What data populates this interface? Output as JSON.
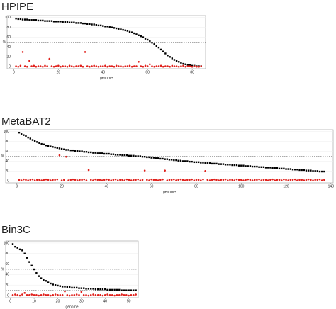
{
  "chart_data": [
    {
      "type": "scatter",
      "title": "HPIPE",
      "x_label": "genome",
      "y_label": "%",
      "xlim": [
        -3,
        86
      ],
      "ylim": [
        -4,
        104
      ],
      "xticks": [
        0,
        20,
        40,
        60,
        80
      ],
      "yticks": [
        0,
        20,
        40,
        60,
        80,
        100
      ],
      "reference_lines": [
        50,
        10
      ],
      "x": [
        1,
        2,
        3,
        4,
        5,
        6,
        7,
        8,
        9,
        10,
        11,
        12,
        13,
        14,
        15,
        16,
        17,
        18,
        19,
        20,
        21,
        22,
        23,
        24,
        25,
        26,
        27,
        28,
        29,
        30,
        31,
        32,
        33,
        34,
        35,
        36,
        37,
        38,
        39,
        40,
        41,
        42,
        43,
        44,
        45,
        46,
        47,
        48,
        49,
        50,
        51,
        52,
        53,
        54,
        55,
        56,
        57,
        58,
        59,
        60,
        61,
        62,
        63,
        64,
        65,
        66,
        67,
        68,
        69,
        70,
        71,
        72,
        73,
        74,
        75,
        76,
        77,
        78,
        79,
        80,
        81,
        82,
        83,
        84
      ],
      "series": [
        {
          "color": "#000000",
          "values": [
            98,
            97,
            97,
            96,
            96,
            96,
            95,
            95,
            95,
            95,
            94,
            94,
            94,
            93,
            93,
            93,
            93,
            92,
            92,
            92,
            92,
            91,
            91,
            91,
            90,
            90,
            90,
            89,
            89,
            89,
            88,
            88,
            87,
            87,
            86,
            86,
            85,
            84,
            84,
            83,
            82,
            82,
            81,
            80,
            79,
            78,
            77,
            76,
            75,
            74,
            73,
            71,
            70,
            68,
            66,
            64,
            62,
            60,
            57,
            55,
            52,
            49,
            46,
            42,
            39,
            35,
            31,
            27,
            23,
            20,
            17,
            14,
            12,
            10,
            8,
            6,
            5,
            4,
            3,
            2,
            2,
            1,
            1,
            1
          ]
        },
        {
          "color": "#e0201b",
          "values": [
            1,
            0,
            2,
            30,
            1,
            0,
            12,
            1,
            2,
            0,
            1,
            1,
            0,
            2,
            1,
            16,
            1,
            0,
            1,
            2,
            0,
            1,
            1,
            0,
            2,
            1,
            0,
            1,
            1,
            2,
            0,
            30,
            1,
            0,
            1,
            2,
            1,
            0,
            1,
            1,
            2,
            0,
            1,
            1,
            0,
            2,
            1,
            1,
            0,
            1,
            1,
            2,
            0,
            1,
            1,
            10,
            1,
            0,
            2,
            1,
            5,
            1,
            0,
            1,
            1,
            2,
            0,
            1,
            1,
            0,
            2,
            1,
            1,
            0,
            1,
            2,
            0,
            1,
            1,
            0,
            1,
            0,
            0,
            1
          ]
        }
      ]
    },
    {
      "type": "scatter",
      "title": "MetaBAT2",
      "x_label": "genome",
      "y_label": "%",
      "xlim": [
        -5,
        141
      ],
      "ylim": [
        -4,
        104
      ],
      "xticks": [
        0,
        20,
        40,
        60,
        80,
        100,
        120,
        140
      ],
      "yticks": [
        0,
        20,
        40,
        60,
        80,
        100
      ],
      "reference_lines": [
        50,
        10
      ],
      "x": [
        1,
        2,
        3,
        4,
        5,
        6,
        7,
        8,
        9,
        10,
        11,
        12,
        13,
        14,
        15,
        16,
        17,
        18,
        19,
        20,
        21,
        22,
        23,
        24,
        25,
        26,
        27,
        28,
        29,
        30,
        31,
        32,
        33,
        34,
        35,
        36,
        37,
        38,
        39,
        40,
        41,
        42,
        43,
        44,
        45,
        46,
        47,
        48,
        49,
        50,
        51,
        52,
        53,
        54,
        55,
        56,
        57,
        58,
        59,
        60,
        61,
        62,
        63,
        64,
        65,
        66,
        67,
        68,
        69,
        70,
        71,
        72,
        73,
        74,
        75,
        76,
        77,
        78,
        79,
        80,
        81,
        82,
        83,
        84,
        85,
        86,
        87,
        88,
        89,
        90,
        91,
        92,
        93,
        94,
        95,
        96,
        97,
        98,
        99,
        100,
        101,
        102,
        103,
        104,
        105,
        106,
        107,
        108,
        109,
        110,
        111,
        112,
        113,
        114,
        115,
        116,
        117,
        118,
        119,
        120,
        121,
        122,
        123,
        124,
        125,
        126,
        127,
        128,
        129,
        130,
        131,
        132,
        133,
        134,
        135,
        136,
        137
      ],
      "series": [
        {
          "color": "#000000",
          "values": [
            98,
            95,
            93,
            91,
            88,
            86,
            83,
            81,
            79,
            77,
            75,
            74,
            72,
            71,
            70,
            69,
            68,
            67,
            66,
            65,
            64,
            63,
            63,
            62,
            62,
            61,
            61,
            60,
            60,
            59,
            59,
            58,
            58,
            57,
            57,
            56,
            56,
            56,
            55,
            55,
            55,
            54,
            54,
            53,
            53,
            53,
            52,
            52,
            52,
            51,
            51,
            51,
            50,
            50,
            50,
            49,
            49,
            48,
            48,
            47,
            47,
            46,
            46,
            45,
            45,
            44,
            44,
            43,
            43,
            42,
            42,
            41,
            41,
            40,
            40,
            40,
            39,
            39,
            38,
            38,
            38,
            37,
            37,
            36,
            36,
            36,
            35,
            35,
            35,
            34,
            34,
            34,
            33,
            33,
            33,
            32,
            32,
            32,
            31,
            31,
            31,
            30,
            30,
            30,
            29,
            29,
            29,
            28,
            28,
            28,
            27,
            27,
            27,
            26,
            26,
            26,
            25,
            25,
            25,
            24,
            24,
            24,
            23,
            23,
            23,
            22,
            22,
            22,
            21,
            21,
            21,
            20,
            20,
            20,
            19,
            19,
            19
          ]
        },
        {
          "color": "#e0201b",
          "values": [
            2,
            1,
            3,
            2,
            1,
            2,
            3,
            1,
            2,
            2,
            1,
            2,
            3,
            2,
            1,
            2,
            2,
            3,
            52,
            1,
            2,
            49,
            1,
            2,
            3,
            2,
            1,
            2,
            2,
            3,
            1,
            22,
            2,
            1,
            3,
            2,
            2,
            1,
            2,
            3,
            2,
            1,
            2,
            3,
            1,
            2,
            2,
            1,
            3,
            2,
            1,
            2,
            2,
            3,
            1,
            2,
            21,
            2,
            1,
            3,
            2,
            2,
            1,
            2,
            3,
            21,
            1,
            2,
            2,
            3,
            1,
            2,
            3,
            2,
            1,
            2,
            2,
            3,
            1,
            2,
            2,
            1,
            3,
            20,
            2,
            1,
            2,
            3,
            2,
            1,
            2,
            2,
            3,
            1,
            2,
            2,
            1,
            3,
            2,
            2,
            1,
            2,
            3,
            2,
            1,
            2,
            2,
            3,
            1,
            2,
            2,
            1,
            2,
            3,
            1,
            2,
            2,
            1,
            3,
            2,
            1,
            2,
            2,
            3,
            1,
            2,
            2,
            1,
            2,
            3,
            2,
            1,
            2,
            2,
            3,
            1,
            2
          ]
        }
      ]
    },
    {
      "type": "scatter",
      "title": "Bin3C",
      "x_label": "genome",
      "y_label": "%",
      "xlim": [
        -2,
        54
      ],
      "ylim": [
        -4,
        104
      ],
      "xticks": [
        0,
        10,
        20,
        30,
        40,
        50
      ],
      "yticks": [
        0,
        20,
        40,
        60,
        80,
        100
      ],
      "reference_lines": [
        50,
        10
      ],
      "x": [
        1,
        2,
        3,
        4,
        5,
        6,
        7,
        8,
        9,
        10,
        11,
        12,
        13,
        14,
        15,
        16,
        17,
        18,
        19,
        20,
        21,
        22,
        23,
        24,
        25,
        26,
        27,
        28,
        29,
        30,
        31,
        32,
        33,
        34,
        35,
        36,
        37,
        38,
        39,
        40,
        41,
        42,
        43,
        44,
        45,
        46,
        47,
        48,
        49,
        50,
        51,
        52,
        53
      ],
      "series": [
        {
          "color": "#000000",
          "values": [
            98,
            93,
            91,
            88,
            86,
            80,
            72,
            64,
            57,
            50,
            43,
            37,
            33,
            30,
            28,
            25,
            23,
            21,
            20,
            19,
            18,
            17,
            17,
            16,
            16,
            15,
            15,
            15,
            14,
            14,
            14,
            13,
            13,
            13,
            13,
            12,
            12,
            12,
            12,
            12,
            11,
            11,
            11,
            11,
            11,
            11,
            10,
            10,
            10,
            10,
            10,
            10,
            10
          ]
        },
        {
          "color": "#e0201b",
          "values": [
            1,
            2,
            1,
            0,
            2,
            5,
            1,
            1,
            2,
            1,
            1,
            0,
            1,
            2,
            1,
            1,
            0,
            1,
            2,
            1,
            1,
            1,
            8,
            1,
            0,
            1,
            1,
            2,
            1,
            7,
            1,
            1,
            0,
            1,
            2,
            1,
            1,
            1,
            0,
            1,
            2,
            1,
            1,
            0,
            1,
            1,
            2,
            1,
            1,
            0,
            1,
            1,
            2
          ]
        }
      ]
    }
  ]
}
